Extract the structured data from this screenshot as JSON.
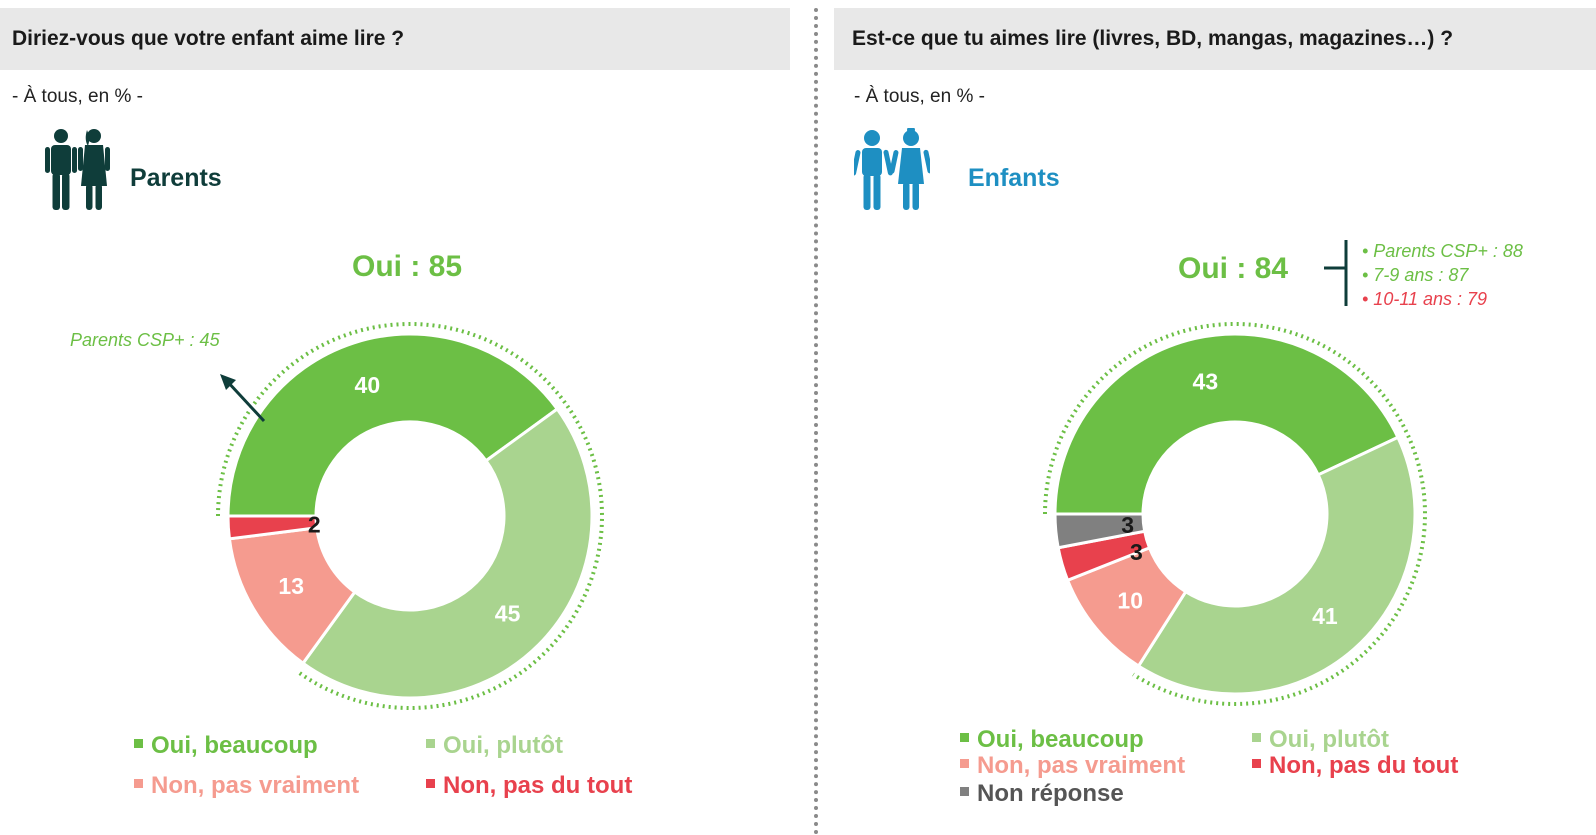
{
  "colors": {
    "oui_beaucoup": "#6cbf45",
    "oui_plutot": "#a9d48f",
    "non_pas_vraiment": "#f59b8f",
    "non_pas_du_tout": "#e8414d",
    "non_reponse": "#808080",
    "parents_icon": "#0f3d3a",
    "enfants_icon": "#1e8fc2"
  },
  "left": {
    "title": "Diriez-vous que votre enfant aime lire ?",
    "subtitle": "- À tous, en % -",
    "group_label": "Parents",
    "group_icon": "parents-couple-icon",
    "oui_total": "Oui : 85",
    "callout": "Parents CSP+ : 45",
    "legend": [
      {
        "key": "oui_beaucoup",
        "label": "Oui, beaucoup"
      },
      {
        "key": "oui_plutot",
        "label": "Oui, plutôt"
      },
      {
        "key": "non_pas_vraiment",
        "label": "Non, pas vraiment"
      },
      {
        "key": "non_pas_du_tout",
        "label": "Non, pas du tout"
      }
    ]
  },
  "right": {
    "title": "Est-ce que tu aimes lire (livres, BD, mangas, magazines…) ?",
    "subtitle": "- À tous, en % -",
    "group_label": "Enfants",
    "group_icon": "children-pair-icon",
    "oui_total": "Oui : 84",
    "breakdown": [
      {
        "text": "• Parents CSP+ : 88",
        "color": "#6cbf45"
      },
      {
        "text": "• 7-9 ans : 87",
        "color": "#6cbf45"
      },
      {
        "text": "• 10-11 ans : 79",
        "color": "#e8414d"
      }
    ],
    "legend": [
      {
        "key": "oui_beaucoup",
        "label": "Oui, beaucoup"
      },
      {
        "key": "oui_plutot",
        "label": "Oui, plutôt"
      },
      {
        "key": "non_pas_vraiment",
        "label": "Non, pas vraiment"
      },
      {
        "key": "non_pas_du_tout",
        "label": "Non, pas du tout"
      },
      {
        "key": "non_reponse",
        "label": "Non réponse"
      }
    ]
  },
  "chart_data": [
    {
      "type": "pie",
      "donut": true,
      "title": "Diriez-vous que votre enfant aime lire ?",
      "unit": "%",
      "categories": [
        "Oui, beaucoup",
        "Oui, plutôt",
        "Non, pas vraiment",
        "Non, pas du tout"
      ],
      "values": [
        40,
        45,
        13,
        2
      ],
      "labels": [
        "40",
        "45",
        "13",
        "2"
      ]
    },
    {
      "type": "pie",
      "donut": true,
      "title": "Est-ce que tu aimes lire (livres, BD, mangas, magazines…) ?",
      "unit": "%",
      "categories": [
        "Oui, beaucoup",
        "Oui, plutôt",
        "Non, pas vraiment",
        "Non, pas du tout",
        "Non réponse"
      ],
      "values": [
        43,
        41,
        10,
        3,
        3
      ],
      "labels": [
        "43",
        "41",
        "10",
        "3",
        "3"
      ]
    }
  ]
}
